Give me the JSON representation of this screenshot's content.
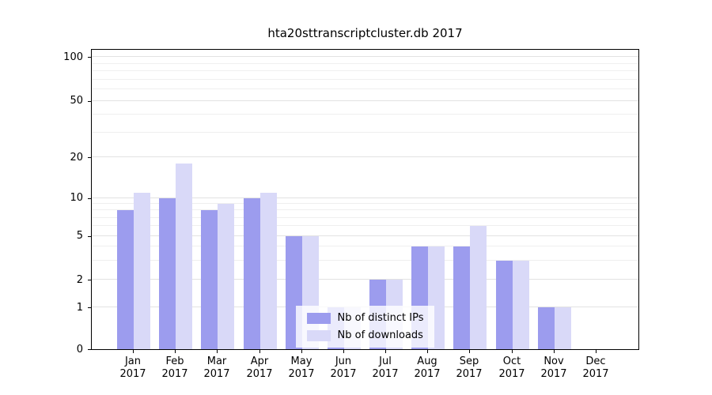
{
  "chart_data": {
    "type": "bar",
    "title": "hta20sttranscriptcluster.db 2017",
    "x_year": "2017",
    "categories": [
      "Jan",
      "Feb",
      "Mar",
      "Apr",
      "May",
      "Jun",
      "Jul",
      "Aug",
      "Sep",
      "Oct",
      "Nov",
      "Dec"
    ],
    "series": [
      {
        "name": "Nb of distinct IPs",
        "color": "#9c9cee",
        "values": [
          8,
          10,
          8,
          10,
          5,
          1,
          2,
          4,
          4,
          3,
          1,
          0
        ]
      },
      {
        "name": "Nb of downloads",
        "color": "#d9d9f8",
        "values": [
          11,
          18,
          9,
          11,
          5,
          1,
          2,
          4,
          6,
          3,
          1,
          0
        ]
      }
    ],
    "y_ticks": [
      100,
      50,
      20,
      10,
      5,
      2,
      1,
      0
    ],
    "y_minor_gridlines": [
      3,
      4,
      6,
      7,
      8,
      9,
      30,
      40,
      60,
      70,
      80,
      90
    ],
    "y_scale": "log-like with zero baseline",
    "xlabel": "",
    "ylabel": "",
    "grid": true,
    "legend_position": "lower center"
  }
}
